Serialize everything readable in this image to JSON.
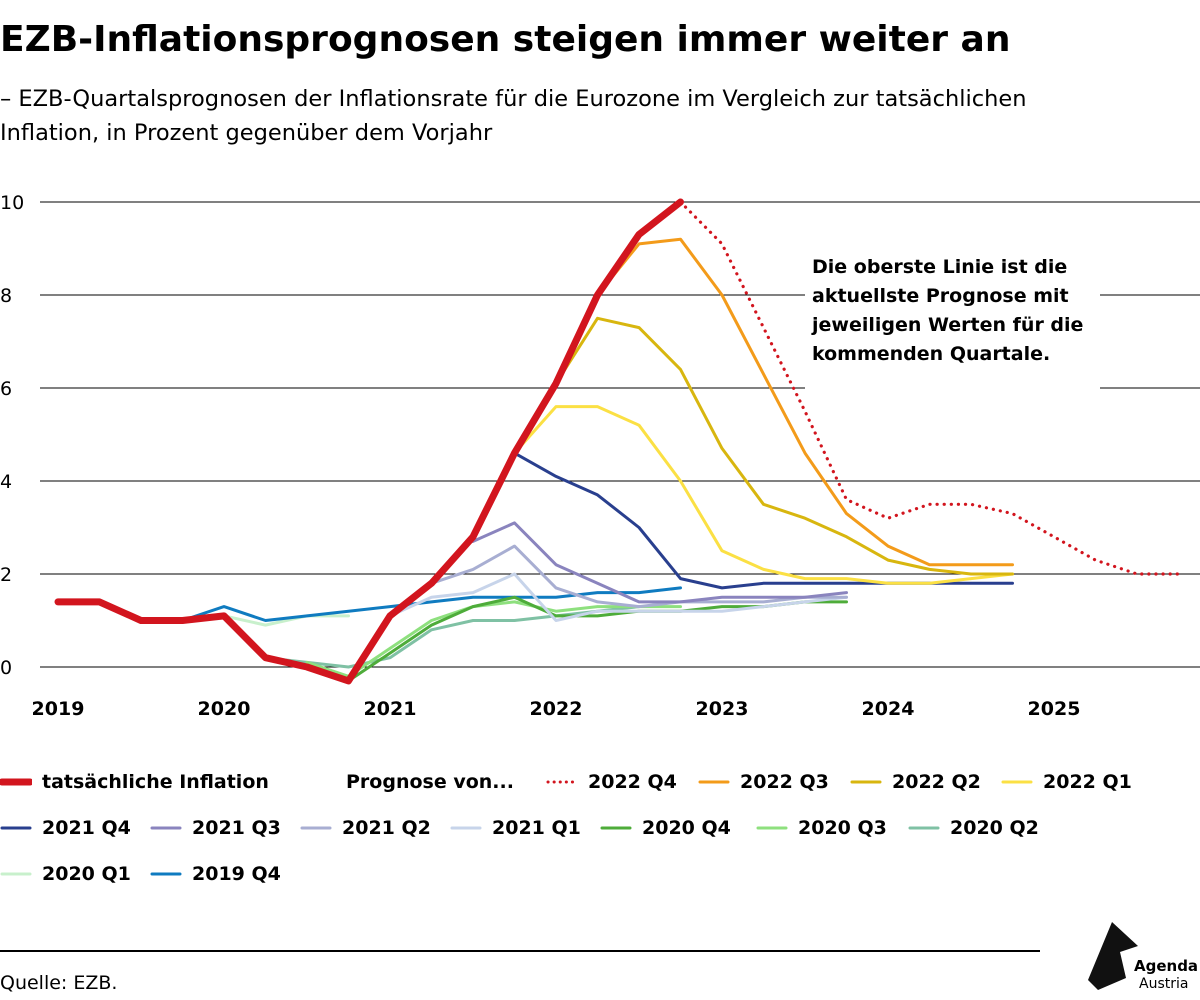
{
  "title": "EZB-Inflationsprognosen steigen immer weiter an",
  "subtitle": "– EZB-Quartalsprognosen der Inflationsrate für die Eurozone im Vergleich zur tatsächlichen Inflation, in Prozent gegenüber dem Vorjahr",
  "annotation": "Die oberste Linie ist die aktuellste Prognose mit jeweiligen Werten für die kommenden Quartale.",
  "source": "Quelle: EZB.",
  "logo": {
    "name": "Agenda",
    "sub": "Austria"
  },
  "chart_data": {
    "type": "line",
    "title": "EZB-Inflationsprognosen steigen immer weiter an",
    "xlabel": "",
    "ylabel": "",
    "xlim": [
      2019,
      2025.75
    ],
    "ylim": [
      -0.4,
      10
    ],
    "yticks": [
      0,
      2,
      4,
      6,
      8,
      10
    ],
    "xticks": [
      "2019",
      "2020",
      "2021",
      "2022",
      "2023",
      "2024",
      "2025"
    ],
    "grid": true,
    "legend_prefix": "Prognose von...",
    "series": [
      {
        "name": "2020 Q1",
        "color": "#c8f0cc",
        "width": 3,
        "x": [
          2019.75,
          2020,
          2020.25,
          2020.5,
          2020.75
        ],
        "y": [
          1.0,
          1.1,
          0.9,
          1.1,
          1.1
        ]
      },
      {
        "name": "2019 Q4",
        "color": "#0f7bc0",
        "width": 3,
        "x": [
          2019.75,
          2020,
          2020.25,
          2020.5,
          2020.75,
          2021,
          2021.25,
          2021.5,
          2021.75,
          2022,
          2022.25,
          2022.5,
          2022.75
        ],
        "y": [
          1.0,
          1.3,
          1.0,
          1.1,
          1.2,
          1.3,
          1.4,
          1.5,
          1.5,
          1.5,
          1.6,
          1.6,
          1.7
        ]
      },
      {
        "name": "2020 Q2",
        "color": "#7fc1a4",
        "width": 3,
        "x": [
          2020.25,
          2020.5,
          2020.75,
          2021,
          2021.25,
          2021.5,
          2021.75,
          2022,
          2022.25,
          2022.5
        ],
        "y": [
          0.2,
          0.1,
          0.0,
          0.2,
          0.8,
          1.0,
          1.0,
          1.1,
          1.2,
          1.3
        ]
      },
      {
        "name": "2020 Q3",
        "color": "#8ee07e",
        "width": 3,
        "x": [
          2020.5,
          2020.75,
          2021,
          2021.25,
          2021.5,
          2021.75,
          2022,
          2022.25,
          2022.5,
          2022.75
        ],
        "y": [
          0.1,
          -0.2,
          0.4,
          1.0,
          1.3,
          1.4,
          1.2,
          1.3,
          1.3,
          1.3
        ]
      },
      {
        "name": "2020 Q4",
        "color": "#4eac3a",
        "width": 3,
        "x": [
          2020.75,
          2021,
          2021.25,
          2021.5,
          2021.75,
          2022,
          2022.25,
          2022.5,
          2022.75,
          2023,
          2023.25,
          2023.5,
          2023.75
        ],
        "y": [
          -0.3,
          0.3,
          0.9,
          1.3,
          1.5,
          1.1,
          1.1,
          1.2,
          1.2,
          1.3,
          1.3,
          1.4,
          1.4
        ]
      },
      {
        "name": "2021 Q1",
        "color": "#c7d4ea",
        "width": 3,
        "x": [
          2021,
          2021.25,
          2021.5,
          2021.75,
          2022,
          2022.25,
          2022.5,
          2022.75,
          2023,
          2023.25,
          2023.5,
          2023.75
        ],
        "y": [
          1.1,
          1.5,
          1.6,
          2.0,
          1.0,
          1.2,
          1.2,
          1.2,
          1.2,
          1.3,
          1.4,
          1.5
        ]
      },
      {
        "name": "2021 Q2",
        "color": "#a8aed2",
        "width": 3,
        "x": [
          2021.25,
          2021.5,
          2021.75,
          2022,
          2022.25,
          2022.5,
          2022.75,
          2023,
          2023.25,
          2023.5,
          2023.75
        ],
        "y": [
          1.8,
          2.1,
          2.6,
          1.7,
          1.4,
          1.3,
          1.4,
          1.4,
          1.4,
          1.5,
          1.5
        ]
      },
      {
        "name": "2021 Q3",
        "color": "#8a84be",
        "width": 3,
        "x": [
          2021.5,
          2021.75,
          2022,
          2022.25,
          2022.5,
          2022.75,
          2023,
          2023.25,
          2023.5,
          2023.75
        ],
        "y": [
          2.7,
          3.1,
          2.2,
          1.8,
          1.4,
          1.4,
          1.5,
          1.5,
          1.5,
          1.6
        ]
      },
      {
        "name": "2021 Q4",
        "color": "#293f8e",
        "width": 3,
        "x": [
          2021.75,
          2022,
          2022.25,
          2022.5,
          2022.75,
          2023,
          2023.25,
          2023.5,
          2023.75,
          2024,
          2024.25,
          2024.5,
          2024.75
        ],
        "y": [
          4.6,
          4.1,
          3.7,
          3.0,
          1.9,
          1.7,
          1.8,
          1.8,
          1.8,
          1.8,
          1.8,
          1.8,
          1.8
        ]
      },
      {
        "name": "2022 Q1",
        "color": "#fbe044",
        "width": 3,
        "x": [
          2021.75,
          2022,
          2022.25,
          2022.5,
          2022.75,
          2023,
          2023.25,
          2023.5,
          2023.75,
          2024,
          2024.25,
          2024.5,
          2024.75
        ],
        "y": [
          4.6,
          5.6,
          5.6,
          5.2,
          4.0,
          2.5,
          2.1,
          1.9,
          1.9,
          1.8,
          1.8,
          1.9,
          2.0
        ]
      },
      {
        "name": "2022 Q2",
        "color": "#d8b60f",
        "width": 3,
        "x": [
          2022,
          2022.25,
          2022.5,
          2022.75,
          2023,
          2023.25,
          2023.5,
          2023.75,
          2024,
          2024.25,
          2024.5,
          2024.75
        ],
        "y": [
          6.1,
          7.5,
          7.3,
          6.4,
          4.7,
          3.5,
          3.2,
          2.8,
          2.3,
          2.1,
          2.0,
          2.0
        ]
      },
      {
        "name": "2022 Q3",
        "color": "#f39b1a",
        "width": 3,
        "x": [
          2022.25,
          2022.5,
          2022.75,
          2023,
          2023.25,
          2023.5,
          2023.75,
          2024,
          2024.25,
          2024.5,
          2024.75
        ],
        "y": [
          8.0,
          9.1,
          9.2,
          8.0,
          6.3,
          4.6,
          3.3,
          2.6,
          2.2,
          2.2,
          2.2
        ]
      },
      {
        "name": "2022 Q4",
        "color": "#d2151e",
        "width": 3,
        "dotted": true,
        "x": [
          2022.75,
          2023,
          2023.25,
          2023.5,
          2023.75,
          2024,
          2024.25,
          2024.5,
          2024.75,
          2025,
          2025.25,
          2025.5,
          2025.75
        ],
        "y": [
          10.0,
          9.1,
          7.3,
          5.5,
          3.6,
          3.2,
          3.5,
          3.5,
          3.3,
          2.8,
          2.3,
          2.0,
          2.0
        ]
      },
      {
        "name": "tatsächliche Inflation",
        "color": "#d2151e",
        "width": 7,
        "x": [
          2019,
          2019.25,
          2019.5,
          2019.75,
          2020,
          2020.25,
          2020.5,
          2020.75,
          2021,
          2021.25,
          2021.5,
          2021.75,
          2022,
          2022.25,
          2022.5,
          2022.75
        ],
        "y": [
          1.4,
          1.4,
          1.0,
          1.0,
          1.1,
          0.2,
          0.0,
          -0.3,
          1.1,
          1.8,
          2.8,
          4.6,
          6.1,
          8.0,
          9.3,
          10.0
        ]
      }
    ]
  },
  "legend": [
    {
      "label": "tatsächliche Inflation",
      "color": "#d2151e",
      "style": "thick"
    },
    {
      "label": "Prognose von...",
      "style": "header"
    },
    {
      "label": "2022 Q4",
      "color": "#d2151e",
      "style": "dotted"
    },
    {
      "label": "2022 Q3",
      "color": "#f39b1a",
      "style": "solid"
    },
    {
      "label": "2022 Q2",
      "color": "#d8b60f",
      "style": "solid"
    },
    {
      "label": "2022 Q1",
      "color": "#fbe044",
      "style": "solid"
    },
    {
      "label": "2021 Q4",
      "color": "#293f8e",
      "style": "solid"
    },
    {
      "label": "2021 Q3",
      "color": "#8a84be",
      "style": "solid"
    },
    {
      "label": "2021 Q2",
      "color": "#a8aed2",
      "style": "solid"
    },
    {
      "label": "2021 Q1",
      "color": "#c7d4ea",
      "style": "solid"
    },
    {
      "label": "2020 Q4",
      "color": "#4eac3a",
      "style": "solid"
    },
    {
      "label": "2020 Q3",
      "color": "#8ee07e",
      "style": "solid"
    },
    {
      "label": "2020 Q2",
      "color": "#7fc1a4",
      "style": "solid"
    },
    {
      "label": "2020 Q1",
      "color": "#c8f0cc",
      "style": "solid"
    },
    {
      "label": "2019 Q4",
      "color": "#0f7bc0",
      "style": "solid"
    }
  ]
}
